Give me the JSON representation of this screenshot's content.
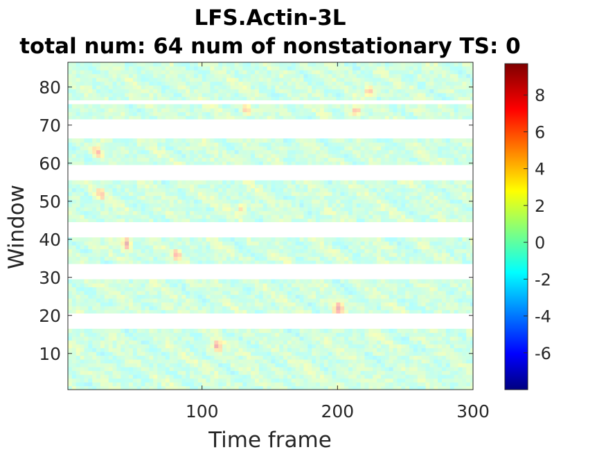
{
  "chart_data": {
    "type": "heatmap",
    "title": "LFS.Actin-3L",
    "subtitle": "total num: 64 num of nonstationary TS: 0",
    "xlabel": "Time frame",
    "ylabel": "Window",
    "xlim": [
      1,
      300
    ],
    "ylim": [
      0.5,
      86.5
    ],
    "x_ticks": [
      100,
      200,
      300
    ],
    "y_ticks": [
      10,
      20,
      30,
      40,
      50,
      60,
      70,
      80
    ],
    "colormap": "jet",
    "color_range": [
      -8,
      9.7
    ],
    "colorbar_ticks": [
      8,
      6,
      4,
      2,
      0,
      -2,
      -4,
      -6
    ],
    "missing_window_ranges": [
      [
        17,
        20
      ],
      [
        30,
        33
      ],
      [
        41,
        44
      ],
      [
        56,
        59
      ],
      [
        67,
        71
      ],
      [
        76,
        76
      ]
    ],
    "total_windows": 86,
    "total_timeframes": 300,
    "hotspots": [
      {
        "window": 12,
        "frame": 110,
        "value": 8.5
      },
      {
        "window": 22,
        "frame": 199,
        "value": 8.0
      },
      {
        "window": 36,
        "frame": 80,
        "value": 7.0
      },
      {
        "window": 39,
        "frame": 43,
        "value": 8.5
      },
      {
        "window": 48,
        "frame": 128,
        "value": 5.0
      },
      {
        "window": 52,
        "frame": 24,
        "value": 5.5
      },
      {
        "window": 63,
        "frame": 21,
        "value": 6.0
      },
      {
        "window": 74,
        "frame": 212,
        "value": 6.5
      },
      {
        "window": 74,
        "frame": 131,
        "value": 6.0
      },
      {
        "window": 79,
        "frame": 222,
        "value": 7.0
      }
    ]
  }
}
